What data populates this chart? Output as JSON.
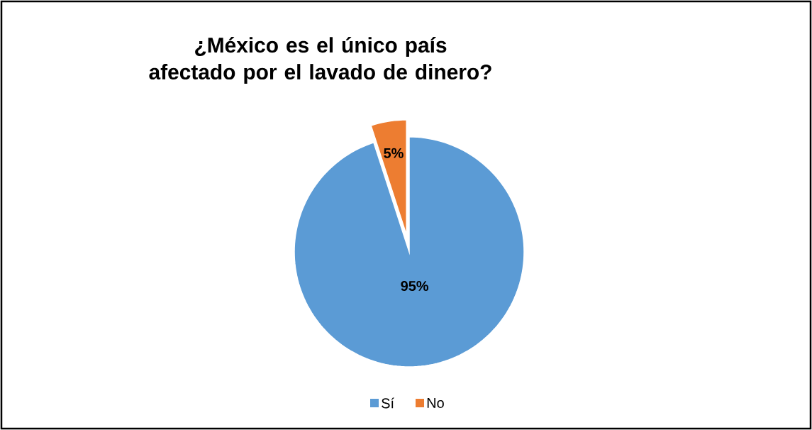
{
  "chart_data": {
    "type": "pie",
    "title": "¿México es el único país afectado por el lavado de dinero?",
    "categories": [
      "Sí",
      "No"
    ],
    "values": [
      95,
      5
    ],
    "colors": [
      "#5b9bd5",
      "#ed7d31"
    ],
    "value_labels": [
      "95%",
      "5%"
    ],
    "legend": "bottom"
  }
}
